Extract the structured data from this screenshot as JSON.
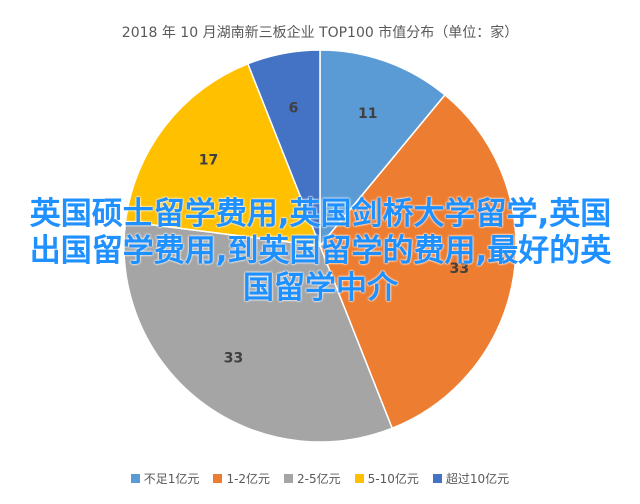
{
  "chart_data": {
    "type": "pie",
    "title": "2018 年 10 月湖南新三板企业 TOP100 市值分布（单位：家）",
    "categories": [
      "不足1亿元",
      "1-2亿元",
      "2-5亿元",
      "5-10亿元",
      "超过10亿元"
    ],
    "values": [
      11,
      33,
      33,
      17,
      6
    ],
    "colors": [
      "#5b9bd5",
      "#ed7d31",
      "#a5a5a5",
      "#ffc000",
      "#4472c4"
    ],
    "legend_position": "bottom"
  },
  "overlay": {
    "text": "英国硕士留学费用,英国剑桥大学留学,英国出国留学费用,到英国留学的费用,最好的英国留学中介"
  }
}
